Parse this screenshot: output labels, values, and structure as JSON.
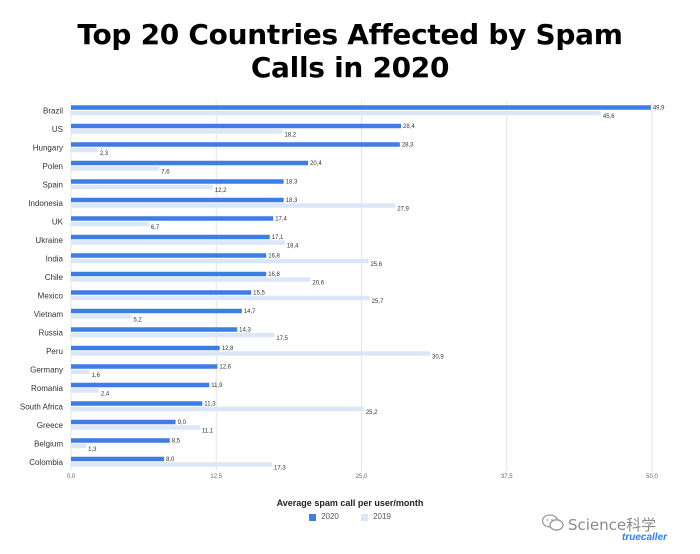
{
  "title_line1": "Top 20 Countries Affected by Spam",
  "title_line2": "Calls in 2020",
  "colors": {
    "s2020": "#3d7de6",
    "s2019": "#dbe7f7",
    "grid": "#e4e4e4"
  },
  "legend": {
    "label_2020": "2020",
    "label_2019": "2019"
  },
  "watermark": {
    "text": "Science科学",
    "logo": "truecaller"
  },
  "chart_data": {
    "type": "bar",
    "orientation": "horizontal",
    "title": "Top 20 Countries Affected by Spam Calls in 2020",
    "xlabel": "Average spam call per user/month",
    "ylabel": "",
    "xlim": [
      0,
      50
    ],
    "xticks": [
      0,
      12.5,
      25,
      37.5,
      50
    ],
    "xtick_labels": [
      "0,0",
      "12,5",
      "25,0",
      "37,5",
      "50,0"
    ],
    "grid": true,
    "legend_position": "bottom",
    "categories": [
      "Brazil",
      "US",
      "Hungary",
      "Polen",
      "Spain",
      "Indonesia",
      "UK",
      "Ukraine",
      "India",
      "Chile",
      "Mexico",
      "Vietnam",
      "Russia",
      "Peru",
      "Germany",
      "Romania",
      "South Africa",
      "Greece",
      "Belgium",
      "Colombia"
    ],
    "series": [
      {
        "name": "2020",
        "values": [
          49.9,
          28.4,
          28.3,
          20.4,
          18.3,
          18.3,
          17.4,
          17.1,
          16.8,
          16.8,
          15.5,
          14.7,
          14.3,
          12.8,
          12.6,
          11.9,
          11.3,
          9.0,
          8.5,
          8.0
        ],
        "labels": [
          "49,9",
          "28,4",
          "28,3",
          "20,4",
          "18,3",
          "18,3",
          "17,4",
          "17,1",
          "16,8",
          "16,8",
          "15,5",
          "14,7",
          "14,3",
          "12,8",
          "12,6",
          "11,9",
          "11,3",
          "9,0",
          "8,5",
          "8,0"
        ]
      },
      {
        "name": "2019",
        "values": [
          45.6,
          18.2,
          2.3,
          7.6,
          12.2,
          27.9,
          6.7,
          18.4,
          25.6,
          20.6,
          25.7,
          5.2,
          17.5,
          30.9,
          1.6,
          2.4,
          25.2,
          11.1,
          1.3,
          17.3
        ],
        "labels": [
          "45,6",
          "18,2",
          "2,3",
          "7,6",
          "12,2",
          "27,9",
          "6,7",
          "18,4",
          "25,6",
          "20,6",
          "25,7",
          "5,2",
          "17,5",
          "30,9",
          "1,6",
          "2,4",
          "25,2",
          "11,1",
          "1,3",
          "17,3"
        ]
      }
    ]
  }
}
